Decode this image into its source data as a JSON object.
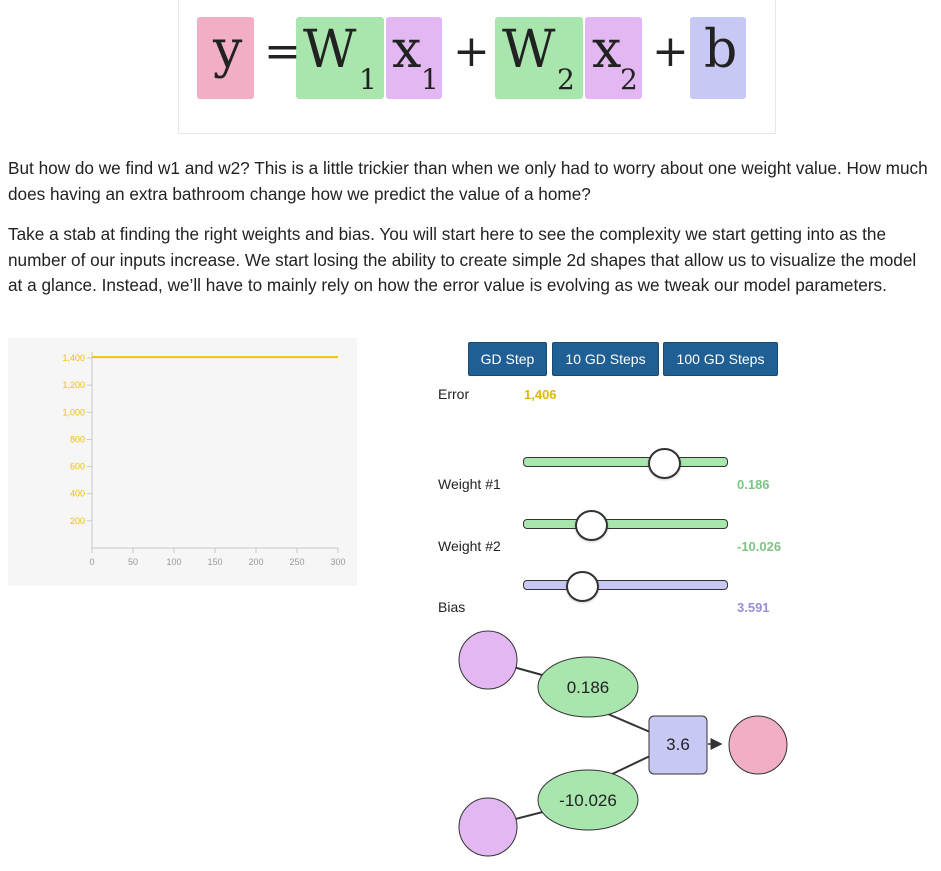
{
  "formula": {
    "y": "y",
    "equals": "=",
    "w": "W",
    "x": "x",
    "sub1": "1",
    "sub2": "2",
    "plus": "+",
    "b": "b"
  },
  "text": {
    "paragraph1": "But how do we find w1 and w2? This is a little trickier than when we only had to worry about one weight value. How much does having an extra bathroom change how we predict the value of a home?",
    "paragraph2": "Take a stab at finding the right weights and bias. You will start here to see the complexity we start getting into as the number of our inputs increase. We start losing the ability to create simple 2d shapes that allow us to visualize the model at a glance. Instead, we’ll have to mainly rely on how the error value is evolving as we tweak our model parameters."
  },
  "buttons": {
    "gd_step": "GD Step",
    "gd_10": "10 GD Steps",
    "gd_100": "100 GD Steps"
  },
  "controls": {
    "error_label": "Error",
    "error_value": "1,406",
    "weight1_label": "Weight #1",
    "weight1_value": "0.186",
    "weight1_level": 0.69,
    "weight2_label": "Weight #2",
    "weight2_value": "-10.026",
    "weight2_level": 0.33,
    "bias_label": "Bias",
    "bias_value": "3.591",
    "bias_level": 0.29
  },
  "network": {
    "w1_node": "0.186",
    "w2_node": "-10.026",
    "bias_node": "3.6"
  },
  "colors": {
    "y_pink": "#f1aec4",
    "weight_green": "#a8e6ae",
    "input_purple": "#e3b8f2",
    "bias_lavender": "#c8c8f4",
    "error_yellow": "#e0b800",
    "weight_text_green": "#7cc584",
    "bias_text_purple": "#9a8fd8",
    "button_blue": "#1f5f93"
  },
  "chart_data": {
    "type": "line",
    "x": [
      0,
      300
    ],
    "series": [
      {
        "values": [
          1406,
          1406
        ]
      }
    ],
    "xticks": [
      "0",
      "50",
      "100",
      "150",
      "200",
      "250",
      "300"
    ],
    "yticks": [
      "200",
      "400",
      "600",
      "800",
      "1,000",
      "1,200",
      "1,400"
    ],
    "xlim": [
      0,
      300
    ],
    "ylim": [
      0,
      1400
    ],
    "line_color": "#f5c400"
  }
}
